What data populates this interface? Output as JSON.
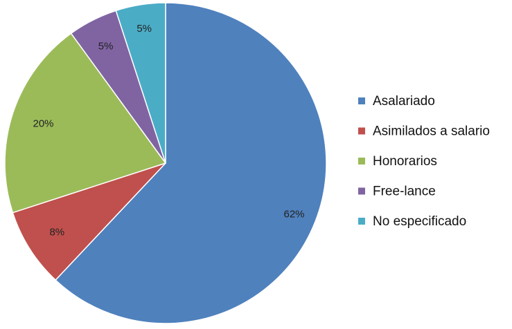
{
  "chart_data": {
    "type": "pie",
    "title": "",
    "categories": [
      "Asalariado",
      "Asimilados a salario",
      "Honorarios",
      "Free-lance",
      "No especificado"
    ],
    "values": [
      62,
      8,
      20,
      5,
      5
    ],
    "data_labels": [
      "62%",
      "8%",
      "20%",
      "5%",
      "5%"
    ],
    "colors": [
      "#4F81BD",
      "#C0504D",
      "#9BBB59",
      "#8064A2",
      "#4BACC6"
    ],
    "start_angle_deg": 0,
    "direction": "clockwise",
    "legend_position": "right",
    "legend": [
      {
        "label": "Asalariado",
        "color": "#4F81BD"
      },
      {
        "label": "Asimilados a salario",
        "color": "#C0504D"
      },
      {
        "label": "Honorarios",
        "color": "#9BBB59"
      },
      {
        "label": "Free-lance",
        "color": "#8064A2"
      },
      {
        "label": "No especificado",
        "color": "#4BACC6"
      }
    ]
  }
}
